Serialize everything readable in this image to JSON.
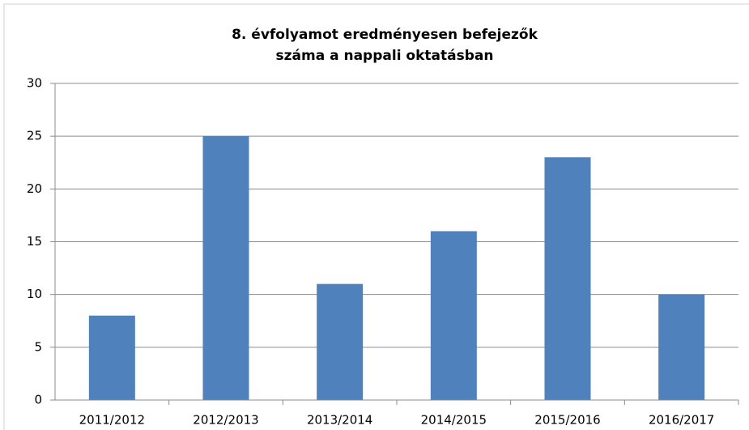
{
  "chart_data": {
    "type": "bar",
    "title": "8. évfolyamot eredményesen befejezők száma  a nappali oktatásban",
    "categories": [
      "2011/2012",
      "2012/2013",
      "2013/2014",
      "2014/2015",
      "2015/2016",
      "2016/2017"
    ],
    "values": [
      8,
      25,
      11,
      16,
      23,
      10
    ],
    "color": "#4f81bd",
    "ylim": [
      0,
      30
    ],
    "yticks": [
      0,
      5,
      10,
      15,
      20,
      25,
      30
    ],
    "grid": true
  }
}
